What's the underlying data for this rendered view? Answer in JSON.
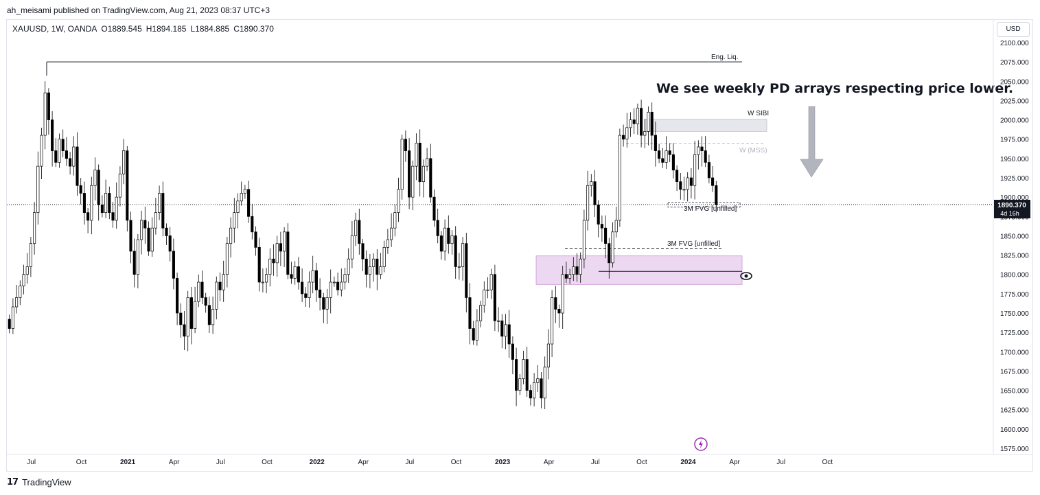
{
  "header": {
    "published_by": "ah_meisami published on TradingView.com, Aug 21, 2023 08:37 UTC+3"
  },
  "symbol_bar": {
    "symbol": "XAUUSD, 1W, OANDA",
    "open": "O1889.545",
    "high": "H1894.185",
    "low": "L1884.885",
    "close": "C1890.370"
  },
  "currency_button": "USD",
  "price_badge": {
    "price": "1890.370",
    "countdown": "4d 16h"
  },
  "footer": {
    "logo": "17",
    "brand": "TradingView"
  },
  "colors": {
    "up": "#ffffff",
    "down": "#000000",
    "outline": "#000000",
    "fvg_box": "#e1bee7",
    "sibi_box": "#d1d4dc",
    "arrow": "#b2b5be",
    "replay_icon": "#9c27b0"
  },
  "annotations": {
    "eng_liq": "Eng. Liq.",
    "headline": "We see weekly PD arrays respecting price lower.",
    "w_sibi": "W SIBI",
    "w_mss": "W (MSS)",
    "fvg_upper": "3M FVG [unfilled]",
    "fvg_lower": "3M FVG [unfilled]"
  },
  "chart_data": {
    "type": "candlestick",
    "symbol": "XAUUSD",
    "timeframe": "1W",
    "ylim": [
      1560,
      2110
    ],
    "y_ticks": [
      2100,
      2075,
      2050,
      2025,
      2000,
      1975,
      1950,
      1925,
      1900,
      1875,
      1850,
      1825,
      1800,
      1775,
      1750,
      1725,
      1700,
      1675,
      1650,
      1625,
      1600,
      1575
    ],
    "x_ticks": [
      {
        "label": "Jul",
        "year": false
      },
      {
        "label": "Oct",
        "year": false
      },
      {
        "label": "2021",
        "year": true
      },
      {
        "label": "Apr",
        "year": false
      },
      {
        "label": "Jul",
        "year": false
      },
      {
        "label": "Oct",
        "year": false
      },
      {
        "label": "2022",
        "year": true
      },
      {
        "label": "Apr",
        "year": false
      },
      {
        "label": "Jul",
        "year": false
      },
      {
        "label": "Oct",
        "year": false
      },
      {
        "label": "2023",
        "year": true
      },
      {
        "label": "Apr",
        "year": false
      },
      {
        "label": "Jul",
        "year": false
      },
      {
        "label": "Oct",
        "year": false
      },
      {
        "label": "2024",
        "year": true
      },
      {
        "label": "Apr",
        "year": false
      },
      {
        "label": "Jul",
        "year": false
      },
      {
        "label": "Oct",
        "year": false
      }
    ],
    "last_price": 1890.37,
    "levels": {
      "eng_liq": 2075,
      "w_sibi_top": 2001,
      "w_sibi_bottom": 1985,
      "w_mss": 1969,
      "fvg_small_top": 1893,
      "fvg_small_bottom": 1887,
      "fvg_upper_line": 1834,
      "fvg_box_top": 1824,
      "fvg_box_bottom": 1787,
      "fvg_low_line": 1804
    },
    "closes": [
      1730,
      1758,
      1770,
      1785,
      1800,
      1810,
      1840,
      1880,
      1940,
      1980,
      2035,
      2000,
      1960,
      1945,
      1975,
      1960,
      1950,
      1940,
      1965,
      1915,
      1905,
      1880,
      1870,
      1915,
      1935,
      1890,
      1880,
      1905,
      1880,
      1870,
      1900,
      1930,
      1960,
      1870,
      1830,
      1800,
      1845,
      1870,
      1860,
      1830,
      1860,
      1880,
      1905,
      1860,
      1850,
      1830,
      1795,
      1750,
      1735,
      1720,
      1770,
      1730,
      1765,
      1790,
      1770,
      1760,
      1735,
      1755,
      1790,
      1780,
      1800,
      1840,
      1860,
      1880,
      1895,
      1905,
      1910,
      1875,
      1855,
      1835,
      1790,
      1790,
      1800,
      1820,
      1815,
      1840,
      1830,
      1855,
      1800,
      1795,
      1810,
      1790,
      1775,
      1770,
      1790,
      1805,
      1780,
      1770,
      1755,
      1770,
      1790,
      1790,
      1780,
      1790,
      1800,
      1820,
      1850,
      1870,
      1840,
      1820,
      1800,
      1810,
      1820,
      1800,
      1810,
      1835,
      1845,
      1860,
      1880,
      1910,
      1975,
      1960,
      1900,
      1940,
      1970,
      1920,
      1940,
      1950,
      1900,
      1870,
      1850,
      1830,
      1860,
      1840,
      1850,
      1810,
      1810,
      1840,
      1770,
      1730,
      1715,
      1740,
      1760,
      1780,
      1780,
      1800,
      1740,
      1740,
      1720,
      1735,
      1710,
      1690,
      1650,
      1665,
      1690,
      1650,
      1640,
      1660,
      1665,
      1640,
      1680,
      1710,
      1770,
      1755,
      1750,
      1800,
      1795,
      1800,
      1810,
      1800,
      1820,
      1870,
      1915,
      1920,
      1890,
      1865,
      1860,
      1840,
      1815,
      1855,
      1870,
      1980,
      1975,
      1990,
      2000,
      1995,
      2015,
      1980,
      1985,
      2010,
      1980,
      1960,
      1950,
      1945,
      1960,
      1955,
      1935,
      1920,
      1910,
      1910,
      1925,
      1915,
      1955,
      1965,
      1960,
      1945,
      1925,
      1915,
      1890
    ]
  }
}
